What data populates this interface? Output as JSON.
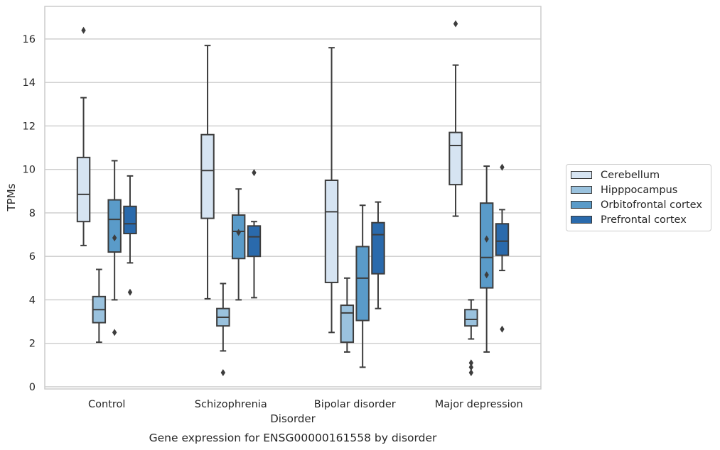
{
  "chart_data": {
    "type": "box",
    "title": "Gene expression for ENSG00000161558 by disorder",
    "xlabel": "Disorder",
    "ylabel": "TPMs",
    "ylim": [
      -0.1,
      17.5
    ],
    "yticks": [
      0,
      2,
      4,
      6,
      8,
      10,
      12,
      14,
      16
    ],
    "grid": "horizontal",
    "legend_position": "right",
    "categories": [
      "Control",
      "Schizophrenia",
      "Bipolar disorder",
      "Major depression"
    ],
    "series": [
      {
        "name": "Cerebellum",
        "color": "#d6e4f2",
        "boxes": [
          {
            "whisker_low": 6.5,
            "q1": 7.6,
            "median": 8.85,
            "q3": 10.55,
            "whisker_high": 13.3,
            "outliers": [
              16.4
            ]
          },
          {
            "whisker_low": 4.05,
            "q1": 7.75,
            "median": 9.95,
            "q3": 11.6,
            "whisker_high": 15.7,
            "outliers": []
          },
          {
            "whisker_low": 2.5,
            "q1": 4.8,
            "median": 8.05,
            "q3": 9.5,
            "whisker_high": 15.6,
            "outliers": []
          },
          {
            "whisker_low": 7.85,
            "q1": 9.3,
            "median": 11.1,
            "q3": 11.7,
            "whisker_high": 14.8,
            "outliers": [
              16.7
            ]
          }
        ]
      },
      {
        "name": "Hipppocampus",
        "color": "#9ac2de",
        "boxes": [
          {
            "whisker_low": 2.05,
            "q1": 2.95,
            "median": 3.55,
            "q3": 4.15,
            "whisker_high": 5.4,
            "outliers": []
          },
          {
            "whisker_low": 1.65,
            "q1": 2.8,
            "median": 3.2,
            "q3": 3.6,
            "whisker_high": 4.75,
            "outliers": [
              0.65
            ]
          },
          {
            "whisker_low": 1.6,
            "q1": 2.05,
            "median": 3.4,
            "q3": 3.75,
            "whisker_high": 5.0,
            "outliers": []
          },
          {
            "whisker_low": 2.2,
            "q1": 2.8,
            "median": 3.1,
            "q3": 3.55,
            "whisker_high": 4.0,
            "outliers": [
              1.1,
              0.9,
              0.65
            ]
          }
        ]
      },
      {
        "name": "Orbitofrontal cortex",
        "color": "#5a9bc9",
        "boxes": [
          {
            "whisker_low": 4.0,
            "q1": 6.2,
            "median": 7.7,
            "q3": 8.6,
            "whisker_high": 10.4,
            "outliers": [
              6.85,
              2.5
            ]
          },
          {
            "whisker_low": 4.0,
            "q1": 5.9,
            "median": 7.15,
            "q3": 7.9,
            "whisker_high": 9.1,
            "outliers": [
              7.1
            ]
          },
          {
            "whisker_low": 0.9,
            "q1": 3.05,
            "median": 5.0,
            "q3": 6.45,
            "whisker_high": 8.35,
            "outliers": []
          },
          {
            "whisker_low": 1.6,
            "q1": 4.55,
            "median": 5.95,
            "q3": 8.45,
            "whisker_high": 10.15,
            "outliers": [
              6.8,
              5.15
            ]
          }
        ]
      },
      {
        "name": "Prefrontal cortex",
        "color": "#2a6aac",
        "boxes": [
          {
            "whisker_low": 5.7,
            "q1": 7.05,
            "median": 7.5,
            "q3": 8.3,
            "whisker_high": 9.7,
            "outliers": [
              4.35
            ]
          },
          {
            "whisker_low": 4.1,
            "q1": 6.0,
            "median": 6.9,
            "q3": 7.4,
            "whisker_high": 7.6,
            "outliers": [
              9.85
            ]
          },
          {
            "whisker_low": 3.6,
            "q1": 5.2,
            "median": 7.0,
            "q3": 7.55,
            "whisker_high": 8.5,
            "outliers": []
          },
          {
            "whisker_low": 5.35,
            "q1": 6.05,
            "median": 6.7,
            "q3": 7.5,
            "whisker_high": 8.15,
            "outliers": [
              10.1,
              2.65
            ]
          }
        ]
      }
    ]
  }
}
